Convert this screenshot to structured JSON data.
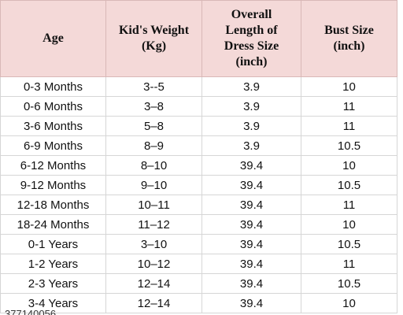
{
  "header": {
    "age": [
      "Age"
    ],
    "weight": [
      "Kid's Weight",
      "(Kg)"
    ],
    "length": [
      "Overall",
      "Length of",
      "Dress Size",
      "(inch)"
    ],
    "bust": [
      "Bust Size",
      "(inch)"
    ]
  },
  "rows": [
    {
      "age": "0-3 Months",
      "weight": "3--5",
      "length": "3.9",
      "bust": "10"
    },
    {
      "age": "0-6 Months",
      "weight": "3–8",
      "length": "3.9",
      "bust": "11"
    },
    {
      "age": "3-6 Months",
      "weight": "5–8",
      "length": "3.9",
      "bust": "11"
    },
    {
      "age": "6-9 Months",
      "weight": "8–9",
      "length": "3.9",
      "bust": "10.5"
    },
    {
      "age": "6-12 Months",
      "weight": "8–10",
      "length": "39.4",
      "bust": "10"
    },
    {
      "age": "9-12 Months",
      "weight": "9–10",
      "length": "39.4",
      "bust": "10.5"
    },
    {
      "age": "12-18 Months",
      "weight": "10–11",
      "length": "39.4",
      "bust": "11"
    },
    {
      "age": "18-24 Months",
      "weight": "11–12",
      "length": "39.4",
      "bust": "10"
    },
    {
      "age": "0-1 Years",
      "weight": "3–10",
      "length": "39.4",
      "bust": "10.5"
    },
    {
      "age": "1-2 Years",
      "weight": "10–12",
      "length": "39.4",
      "bust": "11"
    },
    {
      "age": "2-3 Years",
      "weight": "12–14",
      "length": "39.4",
      "bust": "10.5"
    },
    {
      "age": "3-4 Years",
      "weight": "12–14",
      "length": "39.4",
      "bust": "10"
    }
  ],
  "footer": {
    "number": "377140056"
  },
  "colors": {
    "header_background": "#f4d9d8",
    "grid": "#d6d6d6",
    "text": "#111111"
  }
}
